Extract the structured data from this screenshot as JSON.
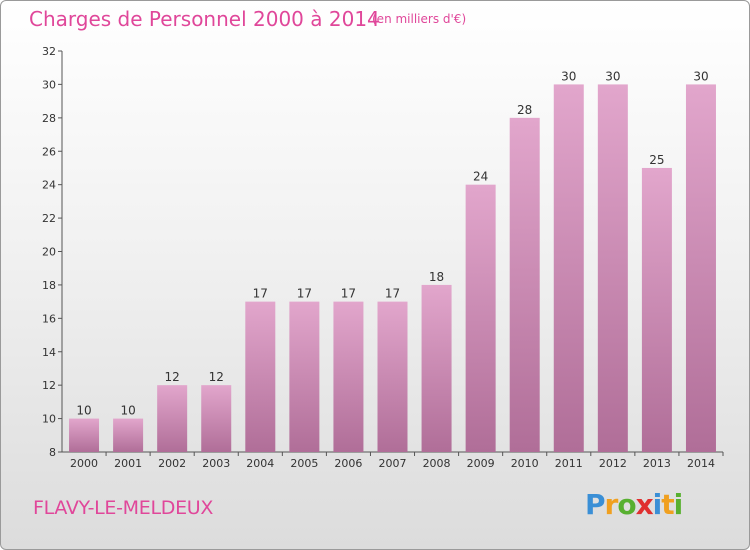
{
  "header": {
    "title": "Charges de Personnel 2000 à 2014",
    "subtitle": "(en milliers d'€)"
  },
  "footer": {
    "commune": "FLAVY-LE-MELDEUX",
    "logo_letters": [
      {
        "char": "P",
        "color": "#3a8fd6"
      },
      {
        "char": "r",
        "color": "#f0a020"
      },
      {
        "char": "o",
        "color": "#58b030"
      },
      {
        "char": "x",
        "color": "#e03030"
      },
      {
        "char": "i",
        "color": "#3a8fd6"
      },
      {
        "char": "t",
        "color": "#f0a020"
      },
      {
        "char": "i",
        "color": "#58b030"
      }
    ]
  },
  "chart_data": {
    "type": "bar",
    "title": "Charges de Personnel 2000 à 2014",
    "subtitle": "(en milliers d'€)",
    "categories": [
      "2000",
      "2001",
      "2002",
      "2003",
      "2004",
      "2005",
      "2006",
      "2007",
      "2008",
      "2009",
      "2010",
      "2011",
      "2012",
      "2013",
      "2014"
    ],
    "values": [
      10,
      10,
      12,
      12,
      17,
      17,
      17,
      17,
      18,
      24,
      28,
      30,
      30,
      25,
      30
    ],
    "ylim": [
      8,
      32
    ],
    "yticks": [
      8,
      10,
      12,
      14,
      16,
      18,
      20,
      22,
      24,
      26,
      28,
      30,
      32
    ],
    "grid": false,
    "bar_color_top": "#e2a6cc",
    "bar_color_bottom": "#b06e98"
  }
}
